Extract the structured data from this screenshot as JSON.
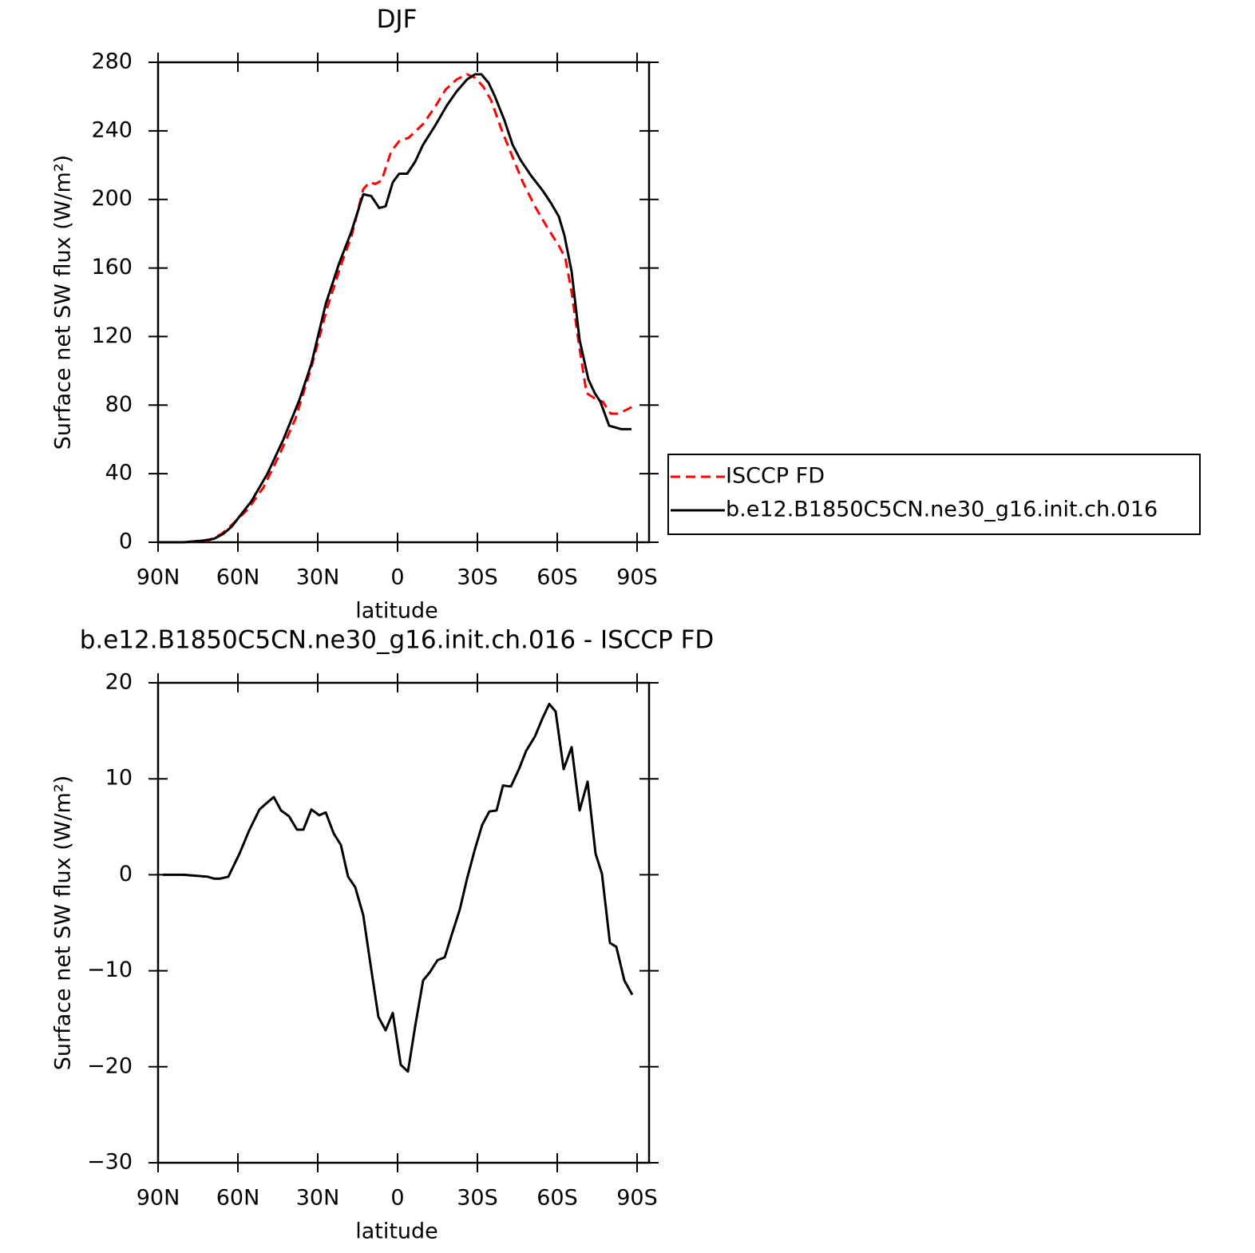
{
  "chart_data": [
    {
      "type": "line",
      "title": "DJF",
      "xlabel": "latitude",
      "ylabel": "Surface net SW flux (W/m²)",
      "xlim": [
        90,
        -94.5
      ],
      "ylim": [
        0,
        280
      ],
      "xticks": [
        {
          "value": 90,
          "label": "90N"
        },
        {
          "value": 60,
          "label": "60N"
        },
        {
          "value": 30,
          "label": "30N"
        },
        0,
        {
          "value": -30,
          "label": "30S"
        },
        {
          "value": -60,
          "label": "60S"
        },
        {
          "value": -90,
          "label": "90S"
        }
      ],
      "yticks": [
        0,
        40,
        80,
        120,
        160,
        200,
        240,
        280
      ],
      "legend": "outside-right",
      "series": [
        {
          "name": "ISCCP FD",
          "color": "#ff0000",
          "dash": true,
          "x": [
            90,
            80.4,
            71,
            66,
            62.4,
            56.4,
            50.4,
            44.4,
            38.4,
            32.4,
            26.4,
            21,
            17.4,
            12.9,
            10.5,
            8.4,
            6,
            2.4,
            -0.6,
            -4.2,
            -9.6,
            -14.1,
            -18,
            -22.2,
            -26.1,
            -29.1,
            -32.1,
            -35.1,
            -39,
            -42.6,
            -47.1,
            -51.6,
            -56.1,
            -60.6,
            -63,
            -65.4,
            -68.1,
            -71,
            -75,
            -77.1,
            -80.1,
            -83.1,
            -88.2
          ],
          "values": [
            0,
            0,
            1,
            5,
            10,
            19,
            32,
            51,
            72,
            102,
            137,
            163,
            178,
            206,
            210,
            209,
            211,
            228,
            234,
            236,
            244,
            254,
            264,
            270,
            273,
            271,
            266,
            258,
            241,
            227,
            210,
            196,
            184,
            173,
            166,
            146,
            116,
            87,
            83,
            82,
            75,
            75,
            79
          ]
        },
        {
          "name": "b.e12.B1850C5CN.ne30_g16.init.ch.016",
          "color": "#000000",
          "dash": false,
          "x": [
            90,
            80.4,
            72.9,
            69,
            65.4,
            62.4,
            59.4,
            54.9,
            48.9,
            42.9,
            36.9,
            32.4,
            27,
            21.9,
            17.4,
            12.9,
            9.9,
            6.9,
            4.5,
            1.8,
            -0.6,
            -3.6,
            -6.6,
            -9.6,
            -14.1,
            -18.6,
            -22.2,
            -26.1,
            -29.1,
            -31.5,
            -34.2,
            -36.6,
            -40.2,
            -43.2,
            -46.2,
            -50.1,
            -54.6,
            -57.6,
            -60.6,
            -62.7,
            -65.4,
            -68.4,
            -71.7,
            -74.1,
            -76.2,
            -79.5,
            -84,
            -87.9
          ],
          "values": [
            0,
            0,
            1,
            2,
            5,
            9,
            15,
            24,
            40,
            60,
            83,
            104,
            139,
            163,
            181,
            203,
            202,
            195,
            196,
            210,
            215,
            215,
            222,
            232,
            243,
            255,
            263,
            270,
            273,
            273,
            268,
            260,
            246,
            232,
            223,
            214,
            205,
            198,
            190,
            179,
            158,
            118,
            95,
            87,
            82,
            68,
            66,
            66
          ]
        }
      ]
    },
    {
      "type": "line",
      "title": "b.e12.B1850C5CN.ne30_g16.init.ch.016 - ISCCP FD",
      "xlabel": "latitude",
      "ylabel": "Surface net SW flux (W/m²)",
      "xlim": [
        90,
        -94.5
      ],
      "ylim": [
        -30,
        20
      ],
      "xticks": [
        {
          "value": 90,
          "label": "90N"
        },
        {
          "value": 60,
          "label": "60N"
        },
        {
          "value": 30,
          "label": "30N"
        },
        0,
        {
          "value": -30,
          "label": "30S"
        },
        {
          "value": -60,
          "label": "60S"
        },
        {
          "value": -90,
          "label": "90S"
        }
      ],
      "yticks": [
        {
          "value": -30,
          "label": "−30"
        },
        {
          "value": -20,
          "label": "−20"
        },
        {
          "value": -10,
          "label": "−10"
        },
        0,
        10,
        20
      ],
      "series": [
        {
          "color": "#000000",
          "dash": false,
          "x": [
            88.2,
            80.4,
            71.4,
            69,
            66.6,
            63.6,
            59.4,
            55.8,
            51.9,
            49.5,
            46.5,
            43.8,
            40.8,
            37.8,
            35.4,
            32.4,
            29.4,
            27,
            24,
            21.3,
            18.6,
            15.9,
            12.9,
            10.2,
            7.2,
            4.5,
            1.8,
            -1.2,
            -3.9,
            -6.6,
            -9.6,
            -12,
            -15,
            -17.7,
            -20.4,
            -23.4,
            -26.1,
            -29.1,
            -31.8,
            -34.5,
            -37.2,
            -39.6,
            -42.6,
            -45.6,
            -48.3,
            -51.6,
            -54.3,
            -57,
            -59.4,
            -62.4,
            -65.4,
            -68.4,
            -71.4,
            -74.4,
            -76.8,
            -79.8,
            -82.2,
            -85.2,
            -88.2
          ],
          "values": [
            0,
            0,
            -0.2,
            -0.4,
            -0.4,
            -0.2,
            2.2,
            4.6,
            6.8,
            7.4,
            8.1,
            6.7,
            6.1,
            4.7,
            4.7,
            6.8,
            6.2,
            6.5,
            4.3,
            3.1,
            -0.2,
            -1.3,
            -4.2,
            -9.3,
            -14.8,
            -16.2,
            -14.4,
            -19.8,
            -20.5,
            -15.8,
            -11,
            -10.2,
            -8.9,
            -8.6,
            -6.2,
            -3.6,
            -0.4,
            2.7,
            5.2,
            6.6,
            6.7,
            9.3,
            9.2,
            11,
            12.9,
            14.4,
            16.2,
            17.8,
            17,
            11,
            13.3,
            6.7,
            9.7,
            2.2,
            0.1,
            -7.1,
            -7.5,
            -11,
            -12.5
          ]
        }
      ]
    }
  ]
}
